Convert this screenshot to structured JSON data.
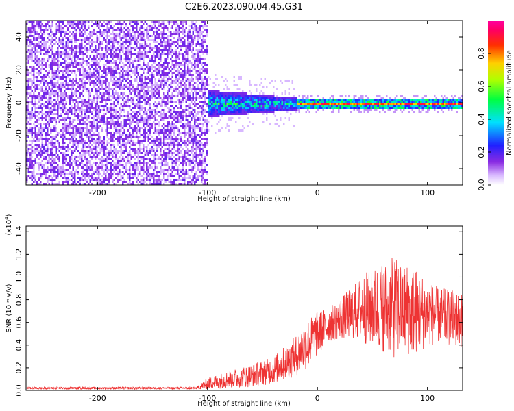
{
  "figure_title": "C2E6.2023.090.04.45.G31",
  "chart_data": [
    {
      "type": "heatmap",
      "xlabel": "Height of straight line (km)",
      "ylabel": "Frequency (Hz)",
      "xlim": [
        -265,
        132
      ],
      "ylim": [
        -50,
        50
      ],
      "x_ticks": [
        -200,
        -100,
        0,
        100
      ],
      "y_ticks": [
        -40,
        -20,
        0,
        20,
        40
      ],
      "colorbar": {
        "label": "Normalized spectral amplitude",
        "range": [
          0,
          1
        ],
        "ticks": [
          "0.0",
          "0.2",
          "0.4",
          "0.6",
          "0.8"
        ],
        "colormap": "rainbow (white-violet-blue-cyan-green-yellow-red)"
      },
      "description_regions": [
        {
          "x_range": [
            -265,
            -100
          ],
          "freq_range": [
            -50,
            50
          ],
          "amplitude": "low (violet, broadband noise)"
        },
        {
          "x_range": [
            -100,
            -20
          ],
          "freq_range": [
            -10,
            10
          ],
          "amplitude": "medium (blue-cyan-green near 0 Hz)"
        },
        {
          "x_range": [
            -20,
            132
          ],
          "freq_range": [
            -3,
            3
          ],
          "amplitude": "high (red/yellow line at ~0 Hz)"
        }
      ]
    },
    {
      "type": "line",
      "xlabel": "Height of straight line (km)",
      "ylabel": "SNR (10 * v/v)",
      "y_multiplier_label": "(x10",
      "y_multiplier_exp": "4",
      "xlim": [
        -265,
        132
      ],
      "ylim": [
        0,
        1.45
      ],
      "x_ticks": [
        -200,
        -100,
        0,
        100
      ],
      "y_ticks": [
        0.0,
        0.2,
        0.4,
        0.6,
        0.8,
        1.0,
        1.2,
        1.4
      ],
      "series": [
        {
          "color": "#ee3333",
          "envelope": {
            "x": [
              -265,
              -200,
              -110,
              -100,
              -80,
              -60,
              -40,
              -20,
              -10,
              0,
              10,
              20,
              30,
              40,
              60,
              70,
              80,
              90,
              100,
              110,
              120,
              132
            ],
            "mean": [
              0.02,
              0.02,
              0.02,
              0.06,
              0.1,
              0.13,
              0.18,
              0.3,
              0.4,
              0.5,
              0.58,
              0.63,
              0.68,
              0.72,
              0.74,
              0.73,
              0.72,
              0.7,
              0.68,
              0.66,
              0.64,
              0.62
            ],
            "amplitude": [
              0.01,
              0.01,
              0.01,
              0.05,
              0.08,
              0.1,
              0.12,
              0.18,
              0.22,
              0.2,
              0.15,
              0.18,
              0.22,
              0.3,
              0.4,
              0.45,
              0.42,
              0.38,
              0.3,
              0.25,
              0.25,
              0.25
            ]
          }
        }
      ]
    }
  ]
}
